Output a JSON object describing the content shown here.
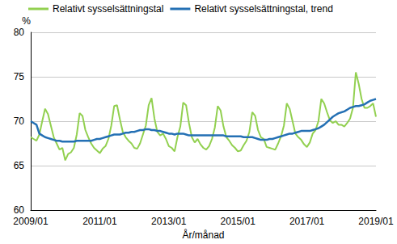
{
  "chart_data": {
    "type": "line",
    "y_label": "%",
    "x_label": "År/månad",
    "legend": "top",
    "grid": true,
    "ylim": [
      60,
      80
    ],
    "yticks": [
      60,
      65,
      70,
      75,
      80
    ],
    "categories": [
      "2009/01",
      null,
      null,
      null,
      null,
      null,
      null,
      null,
      null,
      null,
      null,
      null,
      null,
      null,
      null,
      null,
      null,
      null,
      null,
      null,
      null,
      null,
      null,
      null,
      "2011/01",
      null,
      null,
      null,
      null,
      null,
      null,
      null,
      null,
      null,
      null,
      null,
      null,
      null,
      null,
      null,
      null,
      null,
      null,
      null,
      null,
      null,
      null,
      null,
      "2013/01",
      null,
      null,
      null,
      null,
      null,
      null,
      null,
      null,
      null,
      null,
      null,
      null,
      null,
      null,
      null,
      null,
      null,
      null,
      null,
      null,
      null,
      null,
      null,
      "2015/01",
      null,
      null,
      null,
      null,
      null,
      null,
      null,
      null,
      null,
      null,
      null,
      null,
      null,
      null,
      null,
      null,
      null,
      null,
      null,
      null,
      null,
      null,
      null,
      "2017/01",
      null,
      null,
      null,
      null,
      null,
      null,
      null,
      null,
      null,
      null,
      null,
      null,
      null,
      null,
      null,
      null,
      null,
      null,
      null,
      null,
      null,
      null,
      null,
      "2019/01"
    ],
    "series": [
      {
        "name": "Relativt sysselsättningstal",
        "color": "#92d050",
        "values": [
          68.2,
          68.0,
          67.8,
          68.5,
          70.0,
          71.4,
          70.8,
          69.5,
          68.2,
          67.5,
          66.8,
          67.0,
          65.6,
          66.3,
          66.5,
          67.0,
          68.5,
          70.9,
          70.6,
          69.0,
          68.2,
          67.5,
          67.0,
          66.7,
          66.4,
          66.9,
          67.2,
          68.0,
          69.5,
          71.7,
          71.8,
          70.2,
          68.8,
          68.2,
          67.8,
          67.5,
          67.0,
          66.9,
          67.5,
          68.5,
          69.5,
          71.8,
          72.6,
          70.3,
          68.8,
          68.4,
          68.6,
          68.0,
          67.2,
          67.0,
          66.6,
          68.2,
          69.4,
          72.1,
          71.8,
          69.8,
          68.2,
          67.6,
          68.0,
          67.4,
          67.0,
          66.8,
          67.2,
          68.0,
          69.3,
          71.7,
          71.2,
          69.4,
          68.2,
          67.8,
          67.3,
          67.0,
          66.6,
          66.7,
          67.3,
          67.8,
          68.8,
          71.0,
          70.6,
          69.0,
          68.2,
          68.0,
          67.1,
          67.0,
          66.9,
          66.8,
          67.5,
          68.3,
          69.5,
          72.0,
          71.4,
          70.0,
          68.6,
          68.2,
          67.9,
          67.4,
          67.1,
          67.6,
          68.6,
          69.0,
          70.0,
          72.5,
          72.0,
          71.0,
          70.1,
          69.8,
          70.0,
          69.6,
          69.6,
          69.4,
          69.8,
          70.3,
          71.5,
          75.5,
          74.2,
          72.5,
          71.5,
          71.5,
          71.7,
          72.0,
          70.5
        ]
      },
      {
        "name": "Relativt sysselsättningstal, trend",
        "color": "#2470b4",
        "values": [
          70.0,
          69.8,
          69.6,
          68.6,
          68.4,
          68.2,
          68.1,
          68.0,
          67.9,
          67.8,
          67.8,
          67.7,
          67.7,
          67.7,
          67.7,
          67.7,
          67.8,
          67.8,
          67.8,
          67.8,
          67.8,
          67.8,
          67.9,
          68.0,
          68.0,
          68.1,
          68.2,
          68.3,
          68.4,
          68.5,
          68.5,
          68.5,
          68.6,
          68.7,
          68.7,
          68.8,
          68.8,
          68.9,
          69.0,
          69.0,
          69.1,
          69.1,
          69.0,
          69.0,
          68.9,
          68.9,
          68.8,
          68.7,
          68.6,
          68.6,
          68.5,
          68.6,
          68.6,
          68.6,
          68.5,
          68.4,
          68.4,
          68.4,
          68.4,
          68.4,
          68.4,
          68.4,
          68.4,
          68.4,
          68.4,
          68.4,
          68.4,
          68.4,
          68.3,
          68.3,
          68.3,
          68.3,
          68.3,
          68.3,
          68.2,
          68.2,
          68.2,
          68.2,
          68.1,
          68.0,
          67.9,
          67.9,
          67.9,
          68.0,
          68.0,
          68.1,
          68.2,
          68.3,
          68.4,
          68.5,
          68.6,
          68.6,
          68.7,
          68.8,
          68.9,
          68.9,
          68.9,
          68.9,
          69.0,
          69.1,
          69.2,
          69.4,
          69.6,
          69.9,
          70.2,
          70.5,
          70.7,
          70.9,
          71.0,
          71.1,
          71.3,
          71.5,
          71.6,
          71.7,
          71.7,
          71.8,
          71.9,
          72.1,
          72.3,
          72.4,
          72.5
        ]
      }
    ]
  }
}
